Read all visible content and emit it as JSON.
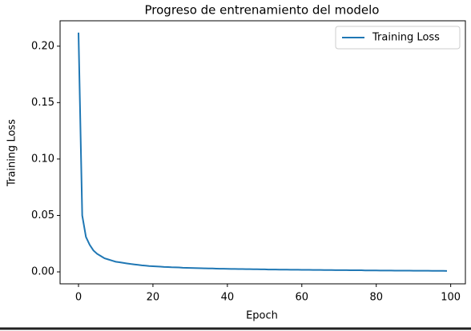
{
  "chart_data": {
    "type": "line",
    "title": "Progreso de entrenamiento del modelo",
    "xlabel": "Epoch",
    "ylabel": "Training Loss",
    "x": [
      0,
      1,
      2,
      3,
      4,
      5,
      6,
      7,
      8,
      9,
      10,
      11,
      12,
      13,
      14,
      15,
      16,
      17,
      18,
      19,
      20,
      21,
      22,
      23,
      24,
      25,
      26,
      27,
      28,
      29,
      30,
      31,
      32,
      33,
      34,
      35,
      36,
      37,
      38,
      39,
      40,
      41,
      42,
      43,
      44,
      45,
      46,
      47,
      48,
      49,
      50,
      51,
      52,
      53,
      54,
      55,
      56,
      57,
      58,
      59,
      60,
      61,
      62,
      63,
      64,
      65,
      66,
      67,
      68,
      69,
      70,
      71,
      72,
      73,
      74,
      75,
      76,
      77,
      78,
      79,
      80,
      81,
      82,
      83,
      84,
      85,
      86,
      87,
      88,
      89,
      90,
      91,
      92,
      93,
      94,
      95,
      96,
      97,
      98,
      99
    ],
    "series": [
      {
        "name": "Training Loss",
        "color": "#1f77b4",
        "values": [
          0.212,
          0.05,
          0.031,
          0.024,
          0.019,
          0.016,
          0.014,
          0.012,
          0.011,
          0.01,
          0.009,
          0.0085,
          0.008,
          0.0075,
          0.007,
          0.0066,
          0.0062,
          0.0058,
          0.0055,
          0.0052,
          0.005,
          0.0048,
          0.0046,
          0.0044,
          0.0043,
          0.0041,
          0.004,
          0.0039,
          0.0037,
          0.0036,
          0.0035,
          0.0034,
          0.0033,
          0.0032,
          0.0031,
          0.003,
          0.003,
          0.0029,
          0.0028,
          0.0028,
          0.0027,
          0.0026,
          0.0026,
          0.0025,
          0.0025,
          0.0024,
          0.0024,
          0.0023,
          0.0023,
          0.0022,
          0.0022,
          0.0021,
          0.0021,
          0.0021,
          0.002,
          0.002,
          0.002,
          0.0019,
          0.0019,
          0.0019,
          0.0018,
          0.0018,
          0.0018,
          0.0017,
          0.0017,
          0.0017,
          0.0016,
          0.0016,
          0.0016,
          0.0015,
          0.0015,
          0.0015,
          0.0015,
          0.0014,
          0.0014,
          0.0014,
          0.0014,
          0.0013,
          0.0013,
          0.0013,
          0.0013,
          0.0012,
          0.0012,
          0.0012,
          0.0012,
          0.0011,
          0.0011,
          0.0011,
          0.0011,
          0.0011,
          0.001,
          0.001,
          0.001,
          0.001,
          0.001,
          0.0009,
          0.0009,
          0.0009,
          0.0009,
          0.0008
        ]
      }
    ],
    "xlim": [
      -4.95,
      103.95
    ],
    "ylim": [
      -0.0106,
      0.2225
    ],
    "xticks": [
      0,
      20,
      40,
      60,
      80,
      100
    ],
    "yticks": [
      {
        "value": 0,
        "label": "0.00"
      },
      {
        "value": 0.05,
        "label": "0.05"
      },
      {
        "value": 0.1,
        "label": "0.10"
      },
      {
        "value": 0.15,
        "label": "0.15"
      },
      {
        "value": 0.2,
        "label": "0.20"
      }
    ],
    "grid": false,
    "legend": "upper right"
  }
}
